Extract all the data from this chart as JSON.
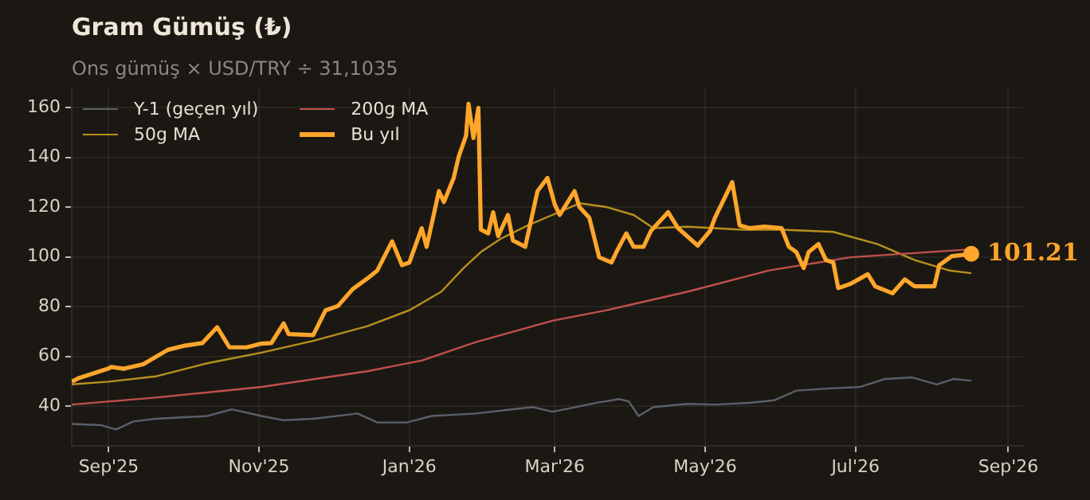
{
  "chart_data": {
    "type": "line",
    "title": "Gram Gümüş (₺)",
    "subtitle": "Ons gümüş × USD/TRY ÷ 31,1035",
    "xlim": [
      "2025-08-17",
      "2026-09-07"
    ],
    "ylim": [
      24,
      168
    ],
    "xticks": [
      {
        "value": "2025-09-01",
        "label": "Sep'25"
      },
      {
        "value": "2025-11-01",
        "label": "Nov'25"
      },
      {
        "value": "2026-01-01",
        "label": "Jan'26"
      },
      {
        "value": "2026-03-01",
        "label": "Mar'26"
      },
      {
        "value": "2026-05-01",
        "label": "May'26"
      },
      {
        "value": "2026-07-01",
        "label": "Jul'26"
      },
      {
        "value": "2026-09-01",
        "label": "Sep'26"
      }
    ],
    "yticks": [
      40,
      60,
      80,
      100,
      120,
      140,
      160
    ],
    "grid": true,
    "legend": "top left",
    "marker": "none",
    "line_style": "solid",
    "series": [
      {
        "name": "Y-1 (geçen yıl)",
        "color": "#5a5f6a",
        "x": [
          "2025-08-17",
          "2025-08-29",
          "2025-09-04",
          "2025-09-11",
          "2025-09-20",
          "2025-10-02",
          "2025-10-11",
          "2025-10-21",
          "2025-11-02",
          "2025-11-11",
          "2025-11-23",
          "2025-12-11",
          "2025-12-19",
          "2025-12-31",
          "2026-01-10",
          "2026-01-28",
          "2026-02-10",
          "2026-02-20",
          "2026-02-28",
          "2026-03-07",
          "2026-03-18",
          "2026-03-27",
          "2026-03-31",
          "2026-04-04",
          "2026-04-10",
          "2026-04-24",
          "2026-05-05",
          "2026-05-19",
          "2026-05-29",
          "2026-06-07",
          "2026-06-19",
          "2026-07-03",
          "2026-07-13",
          "2026-07-24",
          "2026-08-03",
          "2026-08-10",
          "2026-08-17"
        ],
        "values": [
          32.8,
          32.3,
          30.6,
          33.8,
          34.9,
          35.5,
          36,
          38.7,
          36,
          34.3,
          34.9,
          37,
          33.4,
          33.4,
          36,
          37,
          38.5,
          39.6,
          37.7,
          39.1,
          41.3,
          42.8,
          41.9,
          36,
          39.6,
          40.9,
          40.6,
          41.3,
          42.3,
          46.2,
          47,
          47.7,
          50.9,
          51.5,
          48.7,
          50.9,
          50.2
        ]
      },
      {
        "name": "50g MA",
        "color": "#b8901e",
        "x": [
          "2025-08-17",
          "2025-09-01",
          "2025-09-20",
          "2025-10-11",
          "2025-11-02",
          "2025-11-23",
          "2025-12-15",
          "2026-01-01",
          "2026-01-14",
          "2026-01-23",
          "2026-01-30",
          "2026-02-07",
          "2026-02-18",
          "2026-02-28",
          "2026-03-11",
          "2026-03-22",
          "2026-04-02",
          "2026-04-10",
          "2026-04-24",
          "2026-05-16",
          "2026-06-01",
          "2026-06-22",
          "2026-07-10",
          "2026-07-25",
          "2026-08-08",
          "2026-08-17"
        ],
        "values": [
          48.7,
          49.8,
          51.9,
          57.2,
          61.5,
          66.2,
          72.1,
          78.5,
          86,
          95.5,
          101.9,
          107.2,
          112.6,
          116.8,
          121.5,
          120,
          116.8,
          111.5,
          112.1,
          110.9,
          110.9,
          110,
          105.1,
          98.7,
          94.5,
          93.4
        ]
      },
      {
        "name": "200g MA",
        "color": "#c0504d",
        "x": [
          "2025-08-17",
          "2025-09-20",
          "2025-11-02",
          "2025-12-15",
          "2026-01-06",
          "2026-01-28",
          "2026-02-28",
          "2026-03-22",
          "2026-04-24",
          "2026-05-27",
          "2026-06-29",
          "2026-08-17"
        ],
        "values": [
          40.6,
          43.4,
          47.7,
          54,
          58.3,
          65.7,
          74.3,
          78.5,
          86,
          94.5,
          99.8,
          103
        ]
      },
      {
        "name": "Bu yıl",
        "color": "#ffa62b",
        "x": [
          "2025-08-17",
          "2025-08-20",
          "2025-09-01",
          "2025-09-02",
          "2025-09-07",
          "2025-09-15",
          "2025-09-25",
          "2025-10-02",
          "2025-10-09",
          "2025-10-15",
          "2025-10-20",
          "2025-10-27",
          "2025-11-02",
          "2025-11-06",
          "2025-11-11",
          "2025-11-13",
          "2025-11-23",
          "2025-11-28",
          "2025-12-03",
          "2025-12-09",
          "2025-12-15",
          "2025-12-19",
          "2025-12-25",
          "2025-12-29",
          "2026-01-01",
          "2026-01-06",
          "2026-01-08",
          "2026-01-13",
          "2026-01-15",
          "2026-01-19",
          "2026-01-21",
          "2026-01-24",
          "2026-01-25",
          "2026-01-27",
          "2026-01-29",
          "2026-01-30",
          "2026-02-02",
          "2026-02-04",
          "2026-02-06",
          "2026-02-10",
          "2026-02-12",
          "2026-02-17",
          "2026-02-22",
          "2026-02-26",
          "2026-03-01",
          "2026-03-03",
          "2026-03-09",
          "2026-03-11",
          "2026-03-15",
          "2026-03-19",
          "2026-03-24",
          "2026-03-26",
          "2026-03-30",
          "2026-04-02",
          "2026-04-06",
          "2026-04-09",
          "2026-04-16",
          "2026-04-20",
          "2026-04-28",
          "2026-05-03",
          "2026-05-05",
          "2026-05-12",
          "2026-05-15",
          "2026-05-19",
          "2026-05-25",
          "2026-06-01",
          "2026-06-04",
          "2026-06-07",
          "2026-06-10",
          "2026-06-12",
          "2026-06-16",
          "2026-06-19",
          "2026-06-22",
          "2026-06-24",
          "2026-06-29",
          "2026-07-06",
          "2026-07-09",
          "2026-07-16",
          "2026-07-21",
          "2026-07-25",
          "2026-08-02",
          "2026-08-04",
          "2026-08-09",
          "2026-08-17"
        ],
        "values": [
          49.8,
          51.3,
          55.1,
          55.7,
          55,
          56.8,
          62.6,
          64.3,
          65.3,
          71.7,
          63.6,
          63.6,
          65.1,
          65.3,
          73.2,
          68.9,
          68.5,
          78.5,
          80.2,
          87,
          91.3,
          94.5,
          106.2,
          96.6,
          97.7,
          111.5,
          104,
          126.4,
          122,
          131.7,
          140.2,
          148.7,
          161.5,
          147.7,
          159.8,
          110.9,
          109.4,
          117.9,
          108.3,
          116.8,
          106.6,
          104,
          126.4,
          131.7,
          121,
          116.8,
          126.4,
          120,
          115.7,
          99.8,
          97.7,
          101.9,
          109.4,
          104,
          104,
          110.4,
          117.9,
          111.5,
          104.5,
          110.4,
          115.7,
          130,
          112.6,
          111.5,
          112.1,
          111.5,
          104,
          101.9,
          95.5,
          101.9,
          105.1,
          98.7,
          97.7,
          87.4,
          89.1,
          93,
          88.1,
          85.3,
          90.9,
          88.1,
          88.1,
          96.6,
          100.2,
          101.21
        ],
        "value_labels": [
          null,
          null,
          null,
          null,
          null,
          null,
          null,
          null,
          null,
          null,
          null,
          null,
          null,
          null,
          null,
          null,
          null,
          null,
          null,
          null,
          null,
          null,
          null,
          null,
          null,
          null,
          null,
          null,
          null,
          null,
          null,
          null,
          null,
          null,
          null,
          null,
          null,
          null,
          null,
          null,
          null,
          null,
          null,
          null,
          null,
          null,
          null,
          null,
          null,
          null,
          null,
          null,
          null,
          null,
          null,
          null,
          null,
          null,
          null,
          null,
          null,
          null,
          null,
          null,
          null,
          null,
          null,
          null,
          null,
          null,
          null,
          null,
          null,
          null,
          null,
          null,
          null,
          null,
          null,
          null,
          null,
          null,
          null,
          "101.21"
        ]
      }
    ]
  }
}
